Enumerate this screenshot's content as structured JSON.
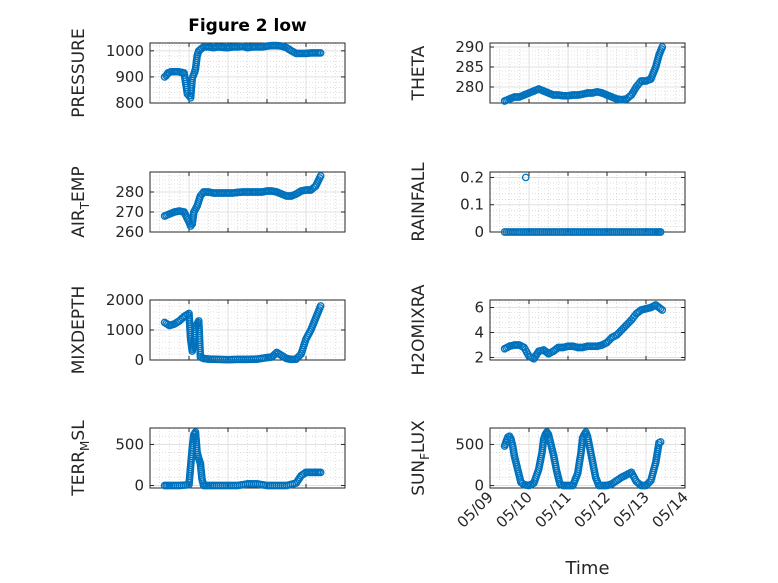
{
  "figure_title": "Figure 2 low",
  "marker_color": "#0072BD",
  "chart_data": [
    {
      "type": "scatter",
      "ylabel": "PRESSURE",
      "title": "Figure 2 low",
      "ylim": [
        800,
        1030
      ],
      "yticks": [
        800,
        900,
        1000
      ],
      "xlim": [
        "05/09",
        "05/14"
      ],
      "grid": true,
      "minor_grid": true,
      "x": [
        "05/09 09:00",
        "05/09 10:00",
        "05/09 11:00",
        "05/09 13:00",
        "05/09 15:00",
        "05/09 17:00",
        "05/09 19:00",
        "05/09 21:00",
        "05/09 23:00",
        "05/10 01:00",
        "05/10 02:00",
        "05/10 03:00",
        "05/10 04:00",
        "05/10 05:00",
        "05/10 06:00",
        "05/10 07:00",
        "05/10 08:00",
        "05/10 09:00",
        "05/10 12:00",
        "05/10 15:00",
        "05/10 18:00",
        "05/10 21:00",
        "05/11 00:00",
        "05/11 03:00",
        "05/11 06:00",
        "05/11 09:00",
        "05/11 12:00",
        "05/11 15:00",
        "05/11 18:00",
        "05/11 21:00",
        "05/12 00:00",
        "05/12 03:00",
        "05/12 06:00",
        "05/12 09:00",
        "05/12 12:00",
        "05/12 15:00",
        "05/12 18:00",
        "05/12 21:00",
        "05/13 00:00",
        "05/13 03:00",
        "05/13 06:00",
        "05/13 09:00"
      ],
      "y": [
        900,
        905,
        915,
        920,
        920,
        920,
        918,
        915,
        835,
        820,
        895,
        910,
        930,
        980,
        1000,
        1005,
        1010,
        1015,
        1015,
        1012,
        1015,
        1013,
        1012,
        1015,
        1015,
        1017,
        1012,
        1015,
        1015,
        1015,
        1018,
        1020,
        1020,
        1018,
        1012,
        1000,
        990,
        990,
        990,
        992,
        992,
        992
      ]
    },
    {
      "type": "scatter",
      "ylabel": "THETA",
      "ylim": [
        276,
        291
      ],
      "yticks": [
        280,
        285,
        290
      ],
      "xlim": [
        "05/09",
        "05/14"
      ],
      "grid": true,
      "minor_grid": true,
      "x": [
        "05/09 09:00",
        "05/09 12:00",
        "05/09 15:00",
        "05/09 18:00",
        "05/09 21:00",
        "05/10 00:00",
        "05/10 03:00",
        "05/10 06:00",
        "05/10 09:00",
        "05/10 12:00",
        "05/10 15:00",
        "05/10 18:00",
        "05/10 21:00",
        "05/11 00:00",
        "05/11 03:00",
        "05/11 06:00",
        "05/11 09:00",
        "05/11 12:00",
        "05/11 15:00",
        "05/11 18:00",
        "05/11 21:00",
        "05/12 00:00",
        "05/12 03:00",
        "05/12 06:00",
        "05/12 09:00",
        "05/12 12:00",
        "05/12 15:00",
        "05/12 18:00",
        "05/12 21:00",
        "05/13 00:00",
        "05/13 03:00",
        "05/13 06:00",
        "05/13 08:00",
        "05/13 10:00"
      ],
      "y": [
        276.5,
        277,
        277.5,
        277.5,
        278,
        278.5,
        279,
        279.5,
        279,
        278.5,
        278,
        278,
        277.8,
        277.8,
        278,
        278,
        278.2,
        278.5,
        278.5,
        278.8,
        278.5,
        278,
        277.5,
        277,
        276.8,
        277,
        278,
        280,
        281.5,
        281.5,
        282,
        285,
        288,
        290
      ]
    },
    {
      "type": "scatter",
      "ylabel": "AIR_TEMP",
      "ylabel_main": "AIR",
      "ylabel_sub": "T",
      "ylabel_rest": "EMP",
      "ylim": [
        260,
        290
      ],
      "yticks": [
        260,
        270,
        280
      ],
      "xlim": [
        "05/09",
        "05/14"
      ],
      "grid": true,
      "minor_grid": true,
      "x": [
        "05/09 09:00",
        "05/09 12:00",
        "05/09 15:00",
        "05/09 18:00",
        "05/09 21:00",
        "05/10 00:00",
        "05/10 01:00",
        "05/10 02:00",
        "05/10 03:00",
        "05/10 05:00",
        "05/10 07:00",
        "05/10 09:00",
        "05/10 12:00",
        "05/10 15:00",
        "05/10 18:00",
        "05/10 21:00",
        "05/11 00:00",
        "05/11 03:00",
        "05/11 06:00",
        "05/11 09:00",
        "05/11 12:00",
        "05/11 15:00",
        "05/11 18:00",
        "05/11 21:00",
        "05/12 00:00",
        "05/12 03:00",
        "05/12 06:00",
        "05/12 09:00",
        "05/12 12:00",
        "05/12 15:00",
        "05/12 18:00",
        "05/12 21:00",
        "05/13 00:00",
        "05/13 03:00",
        "05/13 06:00",
        "05/13 09:00"
      ],
      "y": [
        268,
        269,
        270,
        270.5,
        270,
        265,
        263,
        264,
        270,
        273,
        278,
        280,
        280,
        279.5,
        279.5,
        279.5,
        279.5,
        279.5,
        279.8,
        280,
        280,
        280,
        280,
        280,
        280.5,
        280.5,
        280,
        279,
        278,
        278,
        279,
        280.5,
        281,
        281,
        283,
        288
      ]
    },
    {
      "type": "scatter",
      "ylabel": "RAINFALL",
      "ylim": [
        0,
        0.22
      ],
      "yticks": [
        0,
        0.1,
        0.2
      ],
      "xlim": [
        "05/09",
        "05/14"
      ],
      "grid": true,
      "minor_grid": true,
      "x": [
        "05/09 09:00",
        "05/09 18:00",
        "05/10 00:00",
        "05/10 06:00",
        "05/10 12:00",
        "05/10 18:00",
        "05/11 00:00",
        "05/11 06:00",
        "05/11 12:00",
        "05/11 18:00",
        "05/12 00:00",
        "05/12 06:00",
        "05/12 12:00",
        "05/12 18:00",
        "05/13 00:00",
        "05/13 06:00",
        "05/13 09:00"
      ],
      "y": [
        0,
        0,
        0,
        0,
        0,
        0,
        0,
        0,
        0,
        0,
        0,
        0,
        0,
        0,
        0,
        0,
        0
      ],
      "annotation_point": {
        "x": "05/09 22:00",
        "y": 0.2
      }
    },
    {
      "type": "scatter",
      "ylabel": "MIXDEPTH",
      "ylim": [
        0,
        2000
      ],
      "yticks": [
        0,
        1000,
        2000
      ],
      "xlim": [
        "05/09",
        "05/14"
      ],
      "grid": true,
      "minor_grid": true,
      "x": [
        "05/09 09:00",
        "05/09 12:00",
        "05/09 15:00",
        "05/09 18:00",
        "05/09 21:00",
        "05/10 00:00",
        "05/10 01:00",
        "05/10 02:00",
        "05/10 03:00",
        "05/10 04:00",
        "05/10 05:00",
        "05/10 06:00",
        "05/10 07:00",
        "05/10 09:00",
        "05/10 12:00",
        "05/10 18:00",
        "05/11 00:00",
        "05/11 06:00",
        "05/11 12:00",
        "05/11 18:00",
        "05/12 00:00",
        "05/12 03:00",
        "05/12 06:00",
        "05/12 09:00",
        "05/12 12:00",
        "05/12 15:00",
        "05/12 18:00",
        "05/12 21:00",
        "05/13 00:00",
        "05/13 03:00",
        "05/13 06:00",
        "05/13 09:00"
      ],
      "y": [
        1250,
        1150,
        1200,
        1300,
        1450,
        1550,
        700,
        300,
        600,
        1100,
        1200,
        1300,
        100,
        50,
        30,
        20,
        10,
        20,
        20,
        30,
        80,
        100,
        250,
        150,
        50,
        20,
        30,
        200,
        700,
        1000,
        1400,
        1800
      ]
    },
    {
      "type": "scatter",
      "ylabel": "H2OMIXRA",
      "ylim": [
        1.8,
        6.6
      ],
      "yticks": [
        2,
        4,
        6
      ],
      "xlim": [
        "05/09",
        "05/14"
      ],
      "grid": true,
      "minor_grid": true,
      "x": [
        "05/09 09:00",
        "05/09 12:00",
        "05/09 15:00",
        "05/09 18:00",
        "05/09 21:00",
        "05/10 00:00",
        "05/10 03:00",
        "05/10 06:00",
        "05/10 09:00",
        "05/10 12:00",
        "05/10 15:00",
        "05/10 18:00",
        "05/10 21:00",
        "05/11 00:00",
        "05/11 03:00",
        "05/11 06:00",
        "05/11 09:00",
        "05/11 12:00",
        "05/11 15:00",
        "05/11 18:00",
        "05/11 21:00",
        "05/12 00:00",
        "05/12 03:00",
        "05/12 06:00",
        "05/12 09:00",
        "05/12 12:00",
        "05/12 15:00",
        "05/12 18:00",
        "05/12 21:00",
        "05/13 00:00",
        "05/13 03:00",
        "05/13 06:00",
        "05/13 08:00",
        "05/13 10:00"
      ],
      "y": [
        2.7,
        2.9,
        3.0,
        3.0,
        2.8,
        2.1,
        1.9,
        2.5,
        2.6,
        2.3,
        2.5,
        2.8,
        2.8,
        2.9,
        2.9,
        2.8,
        2.8,
        2.9,
        2.9,
        2.9,
        3.0,
        3.2,
        3.6,
        3.8,
        4.2,
        4.6,
        5.0,
        5.5,
        5.8,
        5.9,
        6.0,
        6.2,
        6.0,
        5.8
      ]
    },
    {
      "type": "scatter",
      "ylabel": "TERR_MSL",
      "ylabel_main": "TERR",
      "ylabel_sub": "M",
      "ylabel_rest": "SL",
      "ylim": [
        -30,
        700
      ],
      "yticks": [
        0,
        500
      ],
      "xlim": [
        "05/09",
        "05/14"
      ],
      "grid": true,
      "minor_grid": true,
      "x": [
        "05/09 09:00",
        "05/09 12:00",
        "05/09 18:00",
        "05/10 00:00",
        "05/10 02:00",
        "05/10 03:00",
        "05/10 04:00",
        "05/10 05:00",
        "05/10 06:00",
        "05/10 07:00",
        "05/10 08:00",
        "05/10 09:00",
        "05/10 12:00",
        "05/10 18:00",
        "05/11 00:00",
        "05/11 06:00",
        "05/11 12:00",
        "05/11 18:00",
        "05/12 00:00",
        "05/12 06:00",
        "05/12 12:00",
        "05/12 18:00",
        "05/12 21:00",
        "05/13 00:00",
        "05/13 03:00",
        "05/13 06:00",
        "05/13 09:00"
      ],
      "y": [
        0,
        0,
        0,
        10,
        460,
        620,
        650,
        400,
        330,
        270,
        80,
        0,
        0,
        0,
        0,
        0,
        20,
        20,
        0,
        0,
        0,
        30,
        120,
        160,
        160,
        160,
        160
      ]
    },
    {
      "type": "scatter",
      "ylabel": "SUN_FLUX",
      "ylabel_main": "SUN",
      "ylabel_sub": "F",
      "ylabel_rest": "LUX",
      "ylim": [
        -30,
        700
      ],
      "yticks": [
        0,
        500
      ],
      "xlim": [
        "05/09",
        "05/14"
      ],
      "grid": true,
      "minor_grid": true,
      "xticks": [
        "05/09",
        "05/10",
        "05/11",
        "05/12",
        "05/13",
        "05/14"
      ],
      "xlabel": "Time",
      "x": [
        "05/09 09:00",
        "05/09 10:00",
        "05/09 11:00",
        "05/09 12:00",
        "05/09 13:00",
        "05/09 14:00",
        "05/09 15:00",
        "05/09 17:00",
        "05/09 19:00",
        "05/09 21:00",
        "05/10 00:00",
        "05/10 03:00",
        "05/10 06:00",
        "05/10 08:00",
        "05/10 09:00",
        "05/10 10:00",
        "05/10 11:00",
        "05/10 12:00",
        "05/10 13:00",
        "05/10 15:00",
        "05/10 17:00",
        "05/10 19:00",
        "05/10 21:00",
        "05/11 00:00",
        "05/11 03:00",
        "05/11 06:00",
        "05/11 08:00",
        "05/11 09:00",
        "05/11 10:00",
        "05/11 11:00",
        "05/11 12:00",
        "05/11 13:00",
        "05/11 15:00",
        "05/11 17:00",
        "05/11 19:00",
        "05/11 21:00",
        "05/12 00:00",
        "05/12 03:00",
        "05/12 06:00",
        "05/12 09:00",
        "05/12 12:00",
        "05/12 15:00",
        "05/12 18:00",
        "05/12 21:00",
        "05/13 00:00",
        "05/13 03:00",
        "05/13 06:00",
        "05/13 08:00",
        "05/13 09:00"
      ],
      "y": [
        480,
        540,
        590,
        600,
        560,
        480,
        360,
        200,
        40,
        10,
        0,
        30,
        200,
        400,
        560,
        620,
        650,
        620,
        540,
        380,
        180,
        20,
        0,
        0,
        0,
        150,
        400,
        580,
        620,
        650,
        600,
        500,
        300,
        100,
        0,
        0,
        0,
        20,
        60,
        100,
        130,
        160,
        50,
        0,
        0,
        60,
        280,
        520,
        530
      ]
    }
  ]
}
